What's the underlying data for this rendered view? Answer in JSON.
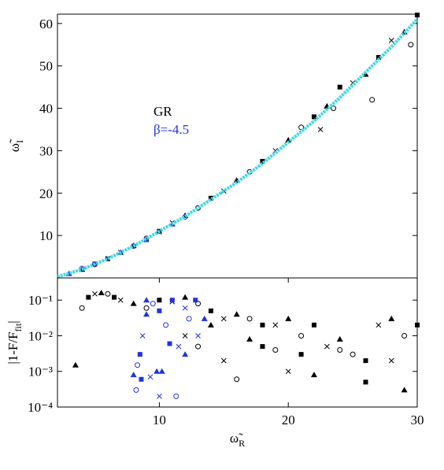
{
  "chart_data": [
    {
      "type": "scatter",
      "ylabel": {
        "symbol": "ω̃",
        "subscript": "I"
      },
      "xlim": [
        2.1,
        30
      ],
      "ylim": [
        0,
        62.2
      ],
      "yticks": [
        10,
        20,
        30,
        40,
        50,
        60
      ],
      "series": [
        {
          "name": "GR",
          "color": "#000000",
          "x": [
            4,
            5,
            6,
            7,
            8,
            9,
            10,
            11,
            12,
            13,
            14,
            15,
            16,
            17,
            18,
            19,
            20,
            21,
            22,
            22.5,
            23,
            23.5,
            24,
            25,
            26,
            26.5,
            27,
            28,
            29,
            29.5,
            30
          ],
          "values": [
            2,
            3.2,
            4.5,
            6,
            7.6,
            9.3,
            11,
            13,
            14.7,
            16.5,
            18.8,
            20.5,
            23,
            25,
            27.5,
            30,
            32.5,
            35.5,
            38,
            35,
            40.5,
            40,
            45,
            46,
            48,
            42,
            52,
            56,
            58,
            55,
            62
          ]
        },
        {
          "name": "β=-4.5",
          "color": "#2233dd",
          "x": [
            3,
            4,
            5,
            6,
            7,
            8,
            9,
            10,
            11,
            12
          ],
          "values": [
            1,
            2.2,
            3.3,
            4.6,
            6,
            7.5,
            9,
            10.8,
            12.7,
            14.4
          ]
        },
        {
          "style": "line",
          "color": "#44d8e0",
          "x": [
            2.1,
            4,
            6,
            8,
            10,
            12,
            14,
            16,
            18,
            20,
            22,
            24,
            26,
            28,
            30
          ],
          "values": [
            0.3,
            2,
            4.5,
            7.5,
            11,
            14.5,
            18.5,
            22.5,
            27,
            32,
            37,
            42.5,
            48.5,
            54.5,
            61
          ]
        }
      ]
    },
    {
      "type": "scatter",
      "log_y": true,
      "ylabel": "|1-F/F",
      "ylabel_subscript": "fit",
      "ylabel_end": "|",
      "xlabel": {
        "symbol": "ω̃",
        "subscript": "R"
      },
      "xlim": [
        2.1,
        30
      ],
      "xticks": [
        10,
        20,
        30
      ],
      "ylim": [
        0.0001,
        0.42
      ],
      "yticks": [
        {
          "value": 0.0001,
          "label": "10⁻⁴"
        },
        {
          "value": 0.001,
          "label": "10⁻³"
        },
        {
          "value": 0.01,
          "label": "10⁻²"
        },
        {
          "value": 0.1,
          "label": "10⁻¹"
        }
      ],
      "series": [
        {
          "name": "GR",
          "color": "#000000",
          "x": [
            3.5,
            4,
            4.5,
            5,
            5.5,
            6,
            6.5,
            7,
            8,
            9,
            10,
            11,
            12,
            13,
            14,
            15,
            16,
            17,
            18,
            19,
            20,
            21,
            22,
            23,
            24,
            25,
            26,
            27,
            28,
            29,
            30,
            15,
            17,
            19,
            21,
            20,
            22,
            24,
            26,
            28,
            29,
            16,
            18,
            12,
            14,
            13
          ],
          "values": [
            0.0015,
            0.06,
            0.12,
            0.15,
            0.16,
            0.15,
            0.12,
            0.1,
            0.08,
            0.06,
            0.1,
            0.09,
            0.12,
            0.08,
            0.05,
            0.03,
            0.04,
            0.03,
            0.02,
            0.02,
            0.03,
            0.01,
            0.02,
            0.005,
            0.008,
            0.003,
            0.002,
            0.02,
            0.03,
            0.01,
            0.02,
            0.002,
            0.008,
            0.004,
            0.003,
            0.001,
            0.0008,
            0.004,
            0.0005,
            0.002,
            0.0003,
            0.0006,
            0.005,
            0.01,
            0.02,
            0.005
          ]
        },
        {
          "name": "β=-4.5",
          "color": "#2233dd",
          "x": [
            8,
            8.3,
            8.5,
            8.7,
            9,
            9.5,
            10,
            10,
            10.2,
            10.5,
            11,
            11.5,
            12,
            12.3,
            12.8,
            13,
            13.5,
            8.2,
            8.6,
            9.3,
            9.8,
            11.3,
            10.8,
            12,
            9
          ],
          "values": [
            0.0008,
            0.0015,
            0.003,
            0.01,
            0.04,
            0.08,
            0.05,
            0.0002,
            0.001,
            0.02,
            0.1,
            0.005,
            0.003,
            0.03,
            0.1,
            0.01,
            0.03,
            0.0003,
            0.0006,
            0.0007,
            0.001,
            0.0002,
            0.006,
            0.06,
            0.1
          ]
        }
      ]
    }
  ]
}
